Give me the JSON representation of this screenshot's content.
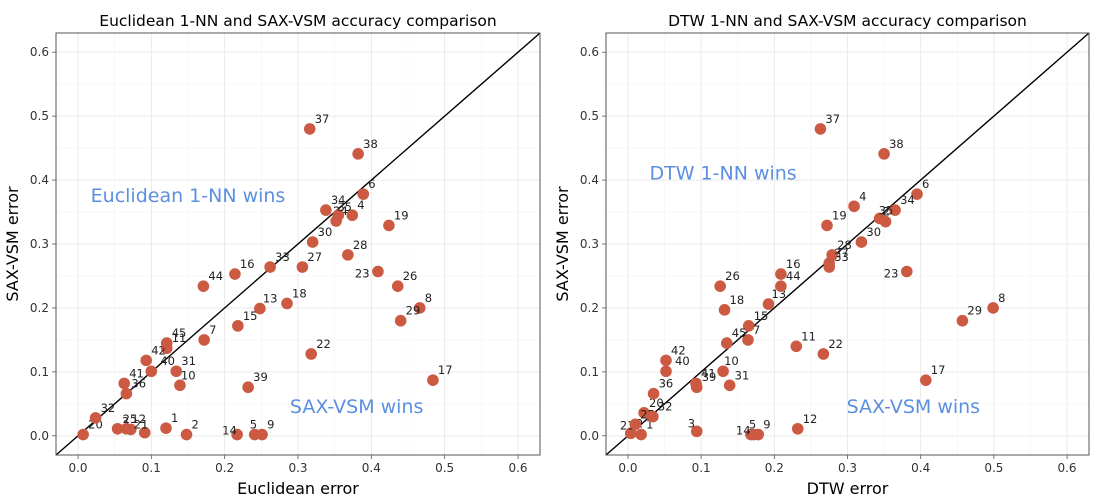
{
  "chart_data": [
    {
      "type": "scatter",
      "title": "Euclidean 1-NN and SAX-VSM accuracy comparison",
      "xlabel": "Euclidean error",
      "ylabel": "SAX-VSM error",
      "xlim": [
        -0.03,
        0.63
      ],
      "ylim": [
        -0.03,
        0.63
      ],
      "xticks": [
        "0.0",
        "0.1",
        "0.2",
        "0.3",
        "0.4",
        "0.5",
        "0.6"
      ],
      "yticks": [
        "0.0",
        "0.1",
        "0.2",
        "0.3",
        "0.4",
        "0.5",
        "0.6"
      ],
      "grid": true,
      "diagonal": true,
      "point_color": "#CC5A43",
      "annotation_color": "#5B8FE0",
      "annotations": [
        {
          "text": "Euclidean 1-NN wins",
          "x": 0.15,
          "y": 0.375
        },
        {
          "text": "SAX-VSM wins",
          "x": 0.38,
          "y": 0.045
        }
      ],
      "points": [
        {
          "label": "1",
          "x": 0.12,
          "y": 0.012
        },
        {
          "label": "2",
          "x": 0.148,
          "y": 0.002
        },
        {
          "label": "3",
          "x": 0.072,
          "y": 0.01
        },
        {
          "label": "4",
          "x": 0.374,
          "y": 0.345
        },
        {
          "label": "5",
          "x": 0.241,
          "y": 0.002
        },
        {
          "label": "6",
          "x": 0.389,
          "y": 0.378
        },
        {
          "label": "7",
          "x": 0.172,
          "y": 0.15
        },
        {
          "label": "8",
          "x": 0.466,
          "y": 0.2
        },
        {
          "label": "9",
          "x": 0.251,
          "y": 0.002
        },
        {
          "label": "10",
          "x": 0.139,
          "y": 0.079
        },
        {
          "label": "11",
          "x": 0.121,
          "y": 0.137
        },
        {
          "label": "12",
          "x": 0.066,
          "y": 0.011
        },
        {
          "label": "13",
          "x": 0.248,
          "y": 0.199
        },
        {
          "label": "14",
          "x": 0.217,
          "y": 0.002
        },
        {
          "label": "15",
          "x": 0.218,
          "y": 0.172
        },
        {
          "label": "16",
          "x": 0.214,
          "y": 0.253
        },
        {
          "label": "17",
          "x": 0.484,
          "y": 0.087
        },
        {
          "label": "18",
          "x": 0.285,
          "y": 0.207
        },
        {
          "label": "19",
          "x": 0.424,
          "y": 0.329
        },
        {
          "label": "20",
          "x": 0.007,
          "y": 0.002
        },
        {
          "label": "21",
          "x": 0.091,
          "y": 0.005
        },
        {
          "label": "22",
          "x": 0.318,
          "y": 0.128
        },
        {
          "label": "23",
          "x": 0.409,
          "y": 0.257
        },
        {
          "label": "24",
          "x": 0.352,
          "y": 0.336
        },
        {
          "label": "25",
          "x": 0.054,
          "y": 0.011
        },
        {
          "label": "26",
          "x": 0.436,
          "y": 0.234
        },
        {
          "label": "27",
          "x": 0.306,
          "y": 0.264
        },
        {
          "label": "28",
          "x": 0.368,
          "y": 0.283
        },
        {
          "label": "29",
          "x": 0.44,
          "y": 0.18
        },
        {
          "label": "30",
          "x": 0.32,
          "y": 0.303
        },
        {
          "label": "31",
          "x": 0.134,
          "y": 0.101
        },
        {
          "label": "32",
          "x": 0.024,
          "y": 0.028
        },
        {
          "label": "33",
          "x": 0.262,
          "y": 0.264
        },
        {
          "label": "34",
          "x": 0.338,
          "y": 0.353
        },
        {
          "label": "35",
          "x": 0.355,
          "y": 0.345
        },
        {
          "label": "36",
          "x": 0.066,
          "y": 0.066
        },
        {
          "label": "37",
          "x": 0.316,
          "y": 0.48
        },
        {
          "label": "38",
          "x": 0.382,
          "y": 0.441
        },
        {
          "label": "39",
          "x": 0.232,
          "y": 0.076
        },
        {
          "label": "40",
          "x": 0.1,
          "y": 0.101
        },
        {
          "label": "41",
          "x": 0.063,
          "y": 0.082
        },
        {
          "label": "42",
          "x": 0.093,
          "y": 0.118
        },
        {
          "label": "44",
          "x": 0.171,
          "y": 0.234
        },
        {
          "label": "45",
          "x": 0.121,
          "y": 0.145
        }
      ]
    },
    {
      "type": "scatter",
      "title": "DTW 1-NN and SAX-VSM accuracy comparison",
      "xlabel": "DTW error",
      "ylabel": "SAX-VSM error",
      "xlim": [
        -0.03,
        0.63
      ],
      "ylim": [
        -0.03,
        0.63
      ],
      "xticks": [
        "0.0",
        "0.1",
        "0.2",
        "0.3",
        "0.4",
        "0.5",
        "0.6"
      ],
      "yticks": [
        "0.0",
        "0.1",
        "0.2",
        "0.3",
        "0.4",
        "0.5",
        "0.6"
      ],
      "grid": true,
      "diagonal": true,
      "point_color": "#CC5A43",
      "annotation_color": "#5B8FE0",
      "annotations": [
        {
          "text": "DTW 1-NN wins",
          "x": 0.13,
          "y": 0.41
        },
        {
          "text": "SAX-VSM wins",
          "x": 0.39,
          "y": 0.045
        }
      ],
      "points": [
        {
          "label": "1",
          "x": 0.018,
          "y": 0.002
        },
        {
          "label": "2",
          "x": 0.004,
          "y": 0.004
        },
        {
          "label": "3",
          "x": 0.094,
          "y": 0.007
        },
        {
          "label": "4",
          "x": 0.309,
          "y": 0.359
        },
        {
          "label": "5",
          "x": 0.172,
          "y": 0.002
        },
        {
          "label": "6",
          "x": 0.395,
          "y": 0.378
        },
        {
          "label": "7",
          "x": 0.164,
          "y": 0.15
        },
        {
          "label": "8",
          "x": 0.499,
          "y": 0.2
        },
        {
          "label": "9",
          "x": 0.178,
          "y": 0.002
        },
        {
          "label": "10",
          "x": 0.13,
          "y": 0.101
        },
        {
          "label": "11",
          "x": 0.23,
          "y": 0.14
        },
        {
          "label": "12",
          "x": 0.232,
          "y": 0.011
        },
        {
          "label": "13",
          "x": 0.192,
          "y": 0.206
        },
        {
          "label": "14",
          "x": 0.168,
          "y": 0.002
        },
        {
          "label": "15",
          "x": 0.165,
          "y": 0.172
        },
        {
          "label": "16",
          "x": 0.209,
          "y": 0.253
        },
        {
          "label": "17",
          "x": 0.407,
          "y": 0.087
        },
        {
          "label": "18",
          "x": 0.132,
          "y": 0.197
        },
        {
          "label": "19",
          "x": 0.272,
          "y": 0.329
        },
        {
          "label": "20",
          "x": 0.022,
          "y": 0.036
        },
        {
          "label": "21",
          "x": 0.004,
          "y": 0.004
        },
        {
          "label": "22",
          "x": 0.267,
          "y": 0.128
        },
        {
          "label": "23",
          "x": 0.381,
          "y": 0.257
        },
        {
          "label": "24",
          "x": 0.352,
          "y": 0.335
        },
        {
          "label": "25",
          "x": 0.01,
          "y": 0.018
        },
        {
          "label": "26",
          "x": 0.126,
          "y": 0.234
        },
        {
          "label": "27",
          "x": 0.275,
          "y": 0.27
        },
        {
          "label": "28",
          "x": 0.279,
          "y": 0.283
        },
        {
          "label": "29",
          "x": 0.457,
          "y": 0.18
        },
        {
          "label": "30",
          "x": 0.319,
          "y": 0.303
        },
        {
          "label": "31",
          "x": 0.139,
          "y": 0.079
        },
        {
          "label": "32",
          "x": 0.034,
          "y": 0.03
        },
        {
          "label": "33",
          "x": 0.275,
          "y": 0.264
        },
        {
          "label": "34",
          "x": 0.365,
          "y": 0.353
        },
        {
          "label": "35",
          "x": 0.344,
          "y": 0.34
        },
        {
          "label": "36",
          "x": 0.035,
          "y": 0.066
        },
        {
          "label": "37",
          "x": 0.263,
          "y": 0.48
        },
        {
          "label": "38",
          "x": 0.35,
          "y": 0.441
        },
        {
          "label": "39",
          "x": 0.094,
          "y": 0.076
        },
        {
          "label": "40",
          "x": 0.052,
          "y": 0.101
        },
        {
          "label": "41",
          "x": 0.093,
          "y": 0.082
        },
        {
          "label": "42",
          "x": 0.052,
          "y": 0.118
        },
        {
          "label": "44",
          "x": 0.209,
          "y": 0.234
        },
        {
          "label": "45",
          "x": 0.135,
          "y": 0.145
        }
      ]
    }
  ]
}
